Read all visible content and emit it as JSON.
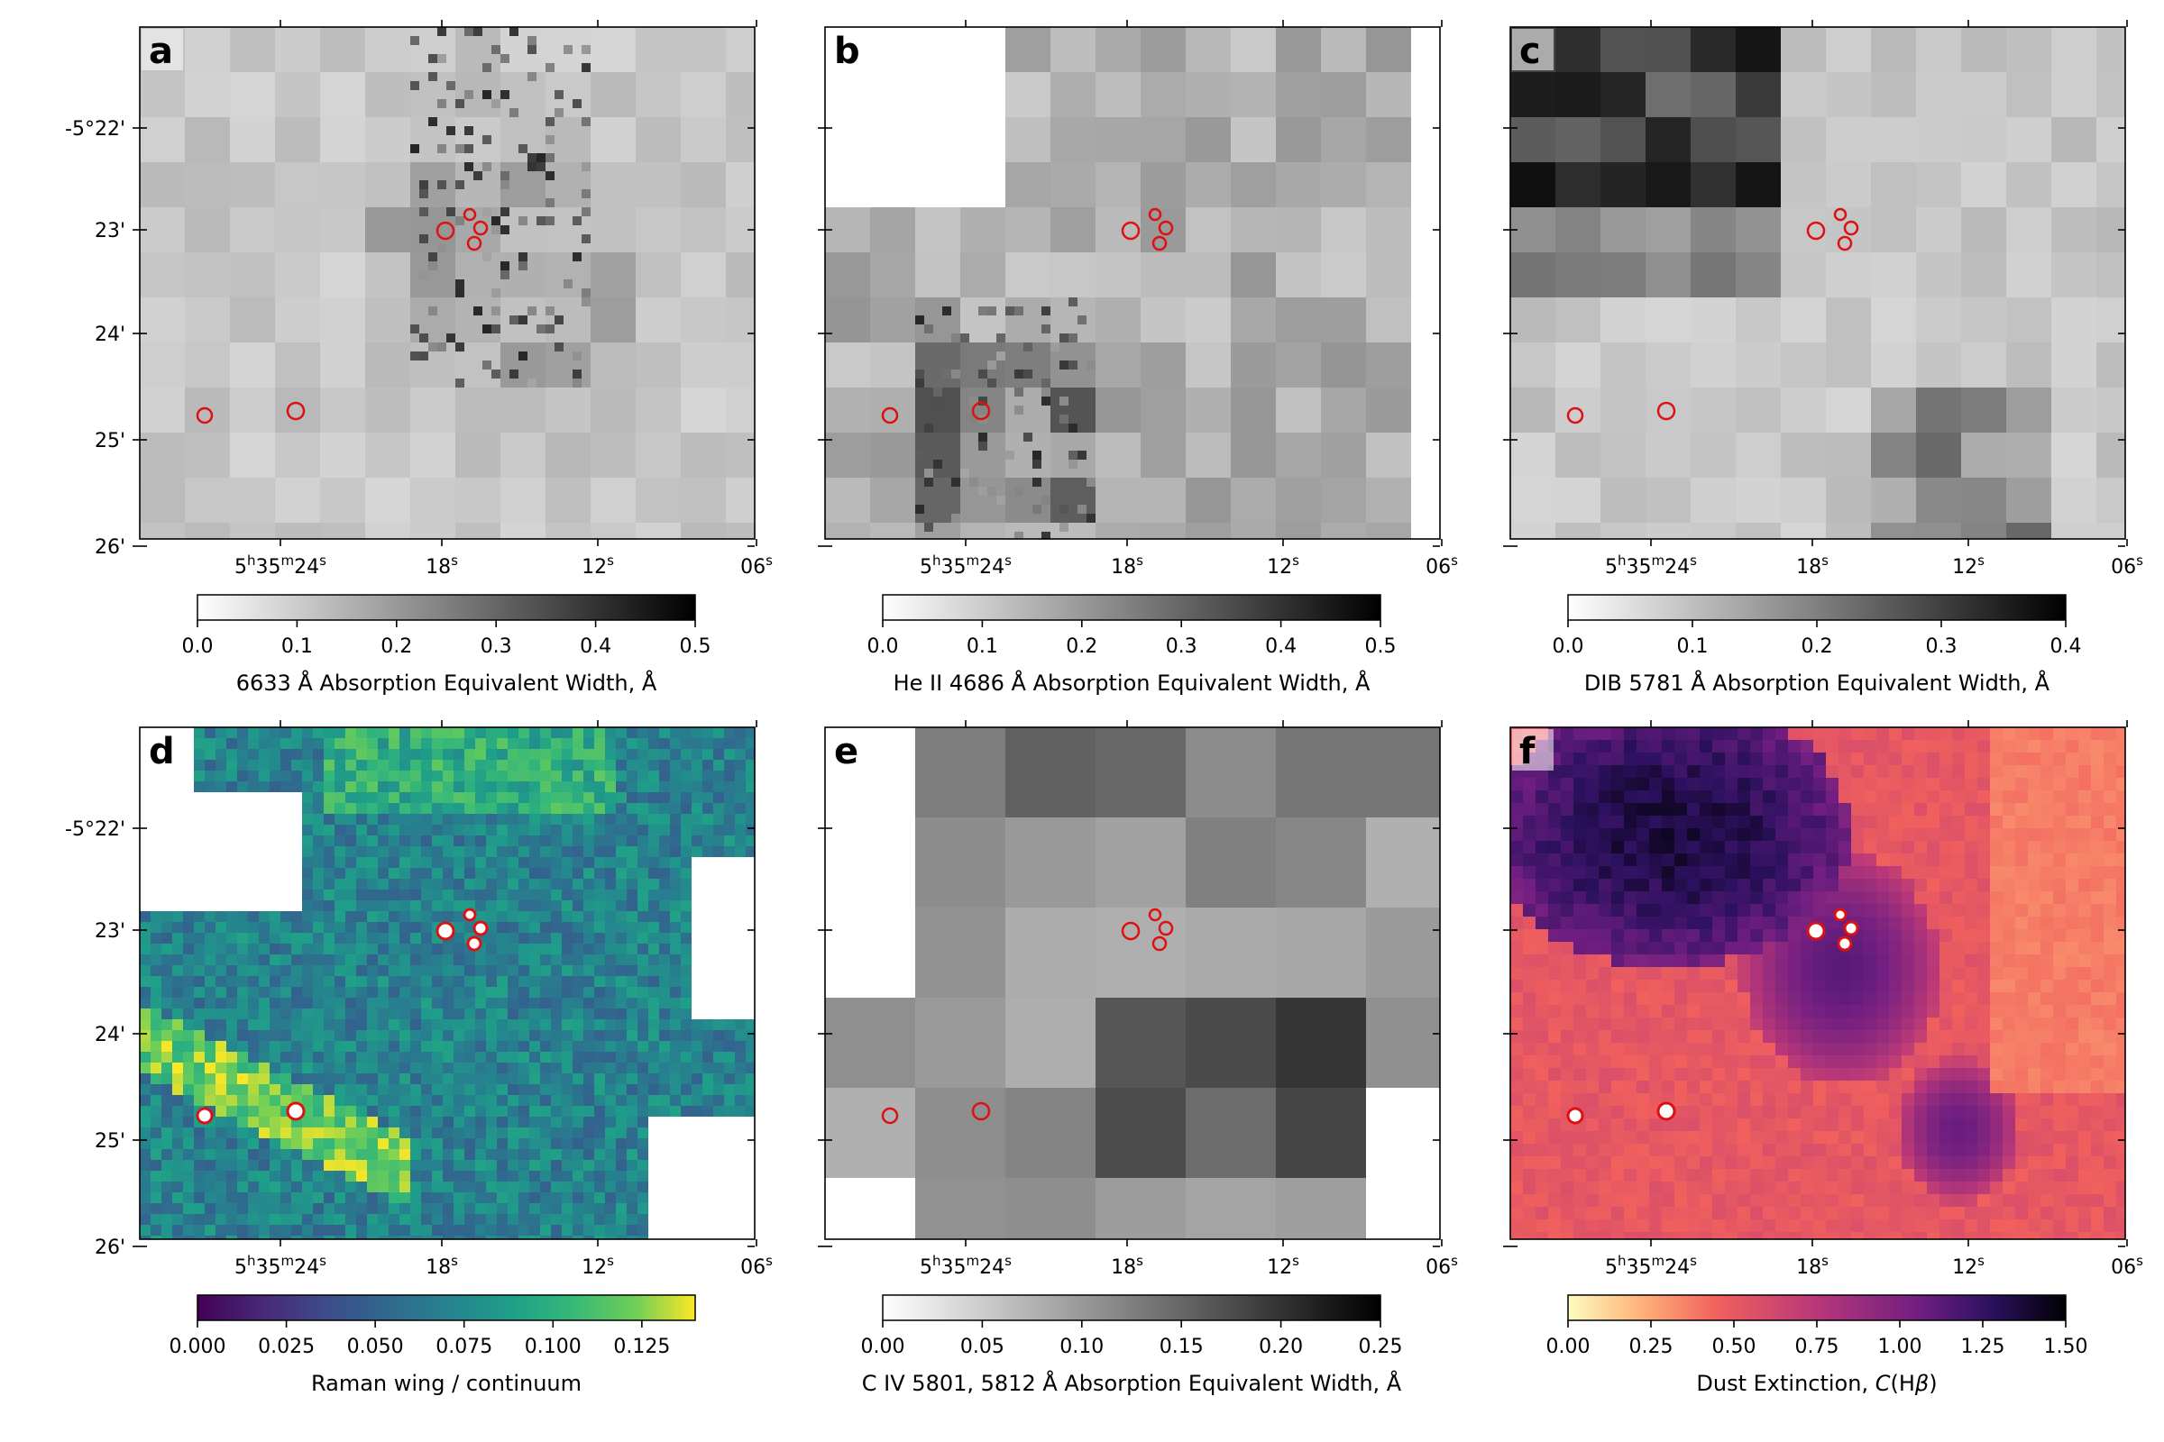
{
  "figure": {
    "y_ticks": [
      "-5°22'",
      "23'",
      "24'",
      "25'",
      "26'"
    ],
    "x_ticks": [
      {
        "h": "5",
        "m": "35",
        "s": "24"
      },
      {
        "h": "",
        "m": "",
        "s": "18"
      },
      {
        "h": "",
        "m": "",
        "s": "12"
      },
      {
        "h": "",
        "m": "",
        "s": "06"
      }
    ],
    "marker_color": "#dd1111"
  },
  "chart_data": [
    {
      "type": "heatmap",
      "panel_label": "a",
      "colormap": "gray_r",
      "colorbar_label": "6633 Å Absorption Equivalent Width, Å",
      "colorbar_range": [
        0,
        0.5
      ],
      "colorbar_ticks": [
        "0.0",
        "0.1",
        "0.2",
        "0.3",
        "0.4",
        "0.5"
      ],
      "texture": "binned_gray"
    },
    {
      "type": "heatmap",
      "panel_label": "b",
      "colormap": "gray_r",
      "colorbar_label": "He II 4686 Å Absorption Equivalent Width, Å",
      "colorbar_range": [
        0,
        0.5
      ],
      "colorbar_ticks": [
        "0.0",
        "0.1",
        "0.2",
        "0.3",
        "0.4",
        "0.5"
      ],
      "texture": "binned_gray_masked"
    },
    {
      "type": "heatmap",
      "panel_label": "c",
      "colormap": "gray_r",
      "colorbar_label": "DIB 5781 Å Absorption Equivalent Width, Å",
      "colorbar_range": [
        0,
        0.4
      ],
      "colorbar_ticks": [
        "0.0",
        "0.1",
        "0.2",
        "0.3",
        "0.4"
      ],
      "texture": "binned_gray_dark_corner"
    },
    {
      "type": "heatmap",
      "panel_label": "d",
      "colormap": "viridis",
      "colorbar_label": "Raman wing / continuum",
      "colorbar_range": [
        0,
        0.14
      ],
      "colorbar_ticks": [
        "0.000",
        "0.025",
        "0.050",
        "0.075",
        "0.100",
        "0.125"
      ],
      "texture": "noisy_viridis"
    },
    {
      "type": "heatmap",
      "panel_label": "e",
      "colormap": "gray_r",
      "colorbar_label": "C IV 5801, 5812 Å Absorption Equivalent Width, Å",
      "colorbar_range": [
        0,
        0.25
      ],
      "colorbar_ticks": [
        "0.00",
        "0.05",
        "0.10",
        "0.15",
        "0.20",
        "0.25"
      ],
      "texture": "big_blocks"
    },
    {
      "type": "heatmap",
      "panel_label": "f",
      "colormap": "magma_r",
      "colorbar_label_parts": [
        "Dust Extinction, ",
        "C",
        "(H",
        "β",
        ")"
      ],
      "colorbar_range": [
        0,
        1.5
      ],
      "colorbar_ticks": [
        "0.00",
        "0.25",
        "0.50",
        "0.75",
        "1.00",
        "1.25",
        "1.50"
      ],
      "texture": "smooth_magma"
    }
  ]
}
